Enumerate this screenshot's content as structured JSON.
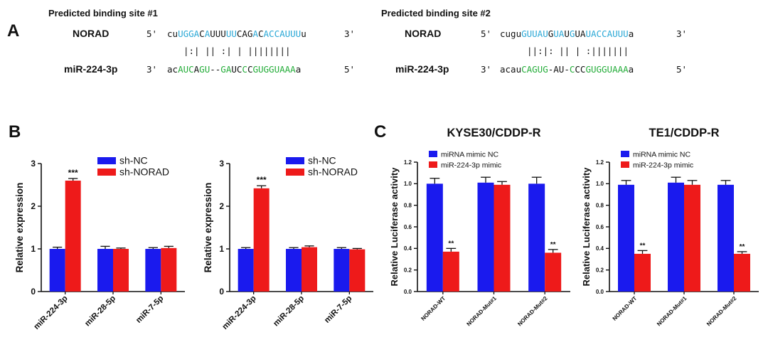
{
  "panels": {
    "A": "A",
    "B": "B",
    "C": "C"
  },
  "binding_sites": [
    {
      "title": "Predicted binding site #1",
      "top_label": "NORAD",
      "top_prime5": "5'",
      "top_prime3": "3'",
      "top_seq": [
        {
          "t": "cu",
          "c": "black"
        },
        {
          "t": "UGGA",
          "c": "blue"
        },
        {
          "t": "C",
          "c": "black"
        },
        {
          "t": "A",
          "c": "blue"
        },
        {
          "t": "UUU",
          "c": "black"
        },
        {
          "t": "UU",
          "c": "blue"
        },
        {
          "t": "CAG",
          "c": "black"
        },
        {
          "t": "A",
          "c": "blue"
        },
        {
          "t": "C",
          "c": "black"
        },
        {
          "t": "ACCAUUU",
          "c": "blue"
        },
        {
          "t": "u",
          "c": "black"
        }
      ],
      "pairing": "|:| ||  :|  | ||||||||",
      "bottom_label": "miR-224-3p",
      "bottom_prime3": "3'",
      "bottom_prime5": "5'",
      "bottom_seq": [
        {
          "t": "ac",
          "c": "black"
        },
        {
          "t": "AUC",
          "c": "green"
        },
        {
          "t": "A",
          "c": "black"
        },
        {
          "t": "GU",
          "c": "green"
        },
        {
          "t": "--",
          "c": "black"
        },
        {
          "t": "GA",
          "c": "green"
        },
        {
          "t": "UC",
          "c": "black"
        },
        {
          "t": "C",
          "c": "green"
        },
        {
          "t": "C",
          "c": "black"
        },
        {
          "t": "GUGGUAAA",
          "c": "green"
        },
        {
          "t": "a",
          "c": "black"
        }
      ]
    },
    {
      "title": "Predicted binding site #2",
      "top_label": "NORAD",
      "top_prime5": "5'",
      "top_prime3": "3'",
      "top_seq": [
        {
          "t": "cugu",
          "c": "black"
        },
        {
          "t": "GUUAU",
          "c": "blue"
        },
        {
          "t": "G",
          "c": "black"
        },
        {
          "t": "UA",
          "c": "blue"
        },
        {
          "t": "U",
          "c": "black"
        },
        {
          "t": "G",
          "c": "blue"
        },
        {
          "t": "UA",
          "c": "black"
        },
        {
          "t": "UACCAUUU",
          "c": "blue"
        },
        {
          "t": "a",
          "c": "black"
        }
      ],
      "pairing": "||:|: || |  :|||||||",
      "bottom_label": "miR-224-3p",
      "bottom_prime3": "3'",
      "bottom_prime5": "5'",
      "bottom_seq": [
        {
          "t": "acau",
          "c": "black"
        },
        {
          "t": "CAGUG",
          "c": "green"
        },
        {
          "t": "-AU-",
          "c": "black"
        },
        {
          "t": "C",
          "c": "green"
        },
        {
          "t": "CC",
          "c": "black"
        },
        {
          "t": "GUGGUAAA",
          "c": "green"
        },
        {
          "t": "a",
          "c": "black"
        }
      ]
    }
  ],
  "colors": {
    "blue_bar": "#1a1aee",
    "red_bar": "#ee1a1a",
    "seq_blue": "#2aa8d6",
    "seq_green": "#25ad3a",
    "axis": "#111111"
  },
  "chart_data": [
    {
      "id": "b1",
      "type": "bar",
      "title": "",
      "xlabel": "",
      "ylabel": "Relative expression",
      "ylim": [
        0,
        3
      ],
      "yticks": [
        0,
        1,
        2,
        3
      ],
      "ytick_labels": [
        "0",
        "1",
        "2",
        "3"
      ],
      "categories": [
        "miR-224-3p",
        "miR-28-5p",
        "miR-7-5p"
      ],
      "series": [
        {
          "name": "sh-NC",
          "color": "#1a1aee",
          "values": [
            1.0,
            1.0,
            1.0
          ],
          "errors": [
            0.04,
            0.06,
            0.03
          ]
        },
        {
          "name": "sh-NORAD",
          "color": "#ee1a1a",
          "values": [
            2.6,
            1.0,
            1.02
          ],
          "errors": [
            0.05,
            0.02,
            0.04
          ]
        }
      ],
      "annotations": [
        {
          "series": 1,
          "category": 0,
          "text": "***"
        }
      ],
      "legend": "top-right"
    },
    {
      "id": "b2",
      "type": "bar",
      "title": "",
      "xlabel": "",
      "ylabel": "Relative expression",
      "ylim": [
        0,
        3
      ],
      "yticks": [
        0,
        1,
        2,
        3
      ],
      "ytick_labels": [
        "0",
        "1",
        "2",
        "3"
      ],
      "categories": [
        "miR-224-3p",
        "miR-28-5p",
        "miR-7-5p"
      ],
      "series": [
        {
          "name": "sh-NC",
          "color": "#1a1aee",
          "values": [
            1.0,
            1.0,
            1.0
          ],
          "errors": [
            0.03,
            0.03,
            0.03
          ]
        },
        {
          "name": "sh-NORAD",
          "color": "#ee1a1a",
          "values": [
            2.42,
            1.04,
            0.99
          ],
          "errors": [
            0.06,
            0.03,
            0.02
          ]
        }
      ],
      "annotations": [
        {
          "series": 1,
          "category": 0,
          "text": "***"
        }
      ],
      "legend": "top-right"
    },
    {
      "id": "c1",
      "type": "bar",
      "title": "KYSE30/CDDP-R",
      "xlabel": "",
      "ylabel": "Relative Luciferase activity",
      "ylim": [
        0,
        1.2
      ],
      "yticks": [
        0,
        0.2,
        0.4,
        0.6,
        0.8,
        1.0,
        1.2
      ],
      "ytick_labels": [
        "0.0",
        "0.2",
        "0.4",
        "0.6",
        "0.8",
        "1.0",
        "1.2"
      ],
      "categories": [
        "NORAD-WT",
        "NORAD-Mut#1",
        "NORAD-Mut#2"
      ],
      "series": [
        {
          "name": "miRNA mimic NC",
          "color": "#1a1aee",
          "values": [
            1.0,
            1.01,
            1.0
          ],
          "errors": [
            0.05,
            0.05,
            0.06
          ]
        },
        {
          "name": "miR-224-3p mimic",
          "color": "#ee1a1a",
          "values": [
            0.37,
            0.99,
            0.36
          ],
          "errors": [
            0.03,
            0.03,
            0.03
          ]
        }
      ],
      "annotations": [
        {
          "series": 1,
          "category": 0,
          "text": "**"
        },
        {
          "series": 1,
          "category": 2,
          "text": "**"
        }
      ],
      "legend": "top-left"
    },
    {
      "id": "c2",
      "type": "bar",
      "title": "TE1/CDDP-R",
      "xlabel": "",
      "ylabel": "Relative Luciferase activity",
      "ylim": [
        0,
        1.2
      ],
      "yticks": [
        0,
        0.2,
        0.4,
        0.6,
        0.8,
        1.0,
        1.2
      ],
      "ytick_labels": [
        "0.0",
        "0.2",
        "0.4",
        "0.6",
        "0.8",
        "1.0",
        "1.2"
      ],
      "categories": [
        "NORAD-WT",
        "NORAD-Mut#1",
        "NORAD-Mut#2"
      ],
      "series": [
        {
          "name": "miRNA mimic NC",
          "color": "#1a1aee",
          "values": [
            0.99,
            1.01,
            0.99
          ],
          "errors": [
            0.04,
            0.05,
            0.04
          ]
        },
        {
          "name": "miR-224-3p mimic",
          "color": "#ee1a1a",
          "values": [
            0.35,
            0.99,
            0.35
          ],
          "errors": [
            0.03,
            0.04,
            0.02
          ]
        }
      ],
      "annotations": [
        {
          "series": 1,
          "category": 0,
          "text": "**"
        },
        {
          "series": 1,
          "category": 2,
          "text": "**"
        }
      ],
      "legend": "top-left"
    }
  ]
}
